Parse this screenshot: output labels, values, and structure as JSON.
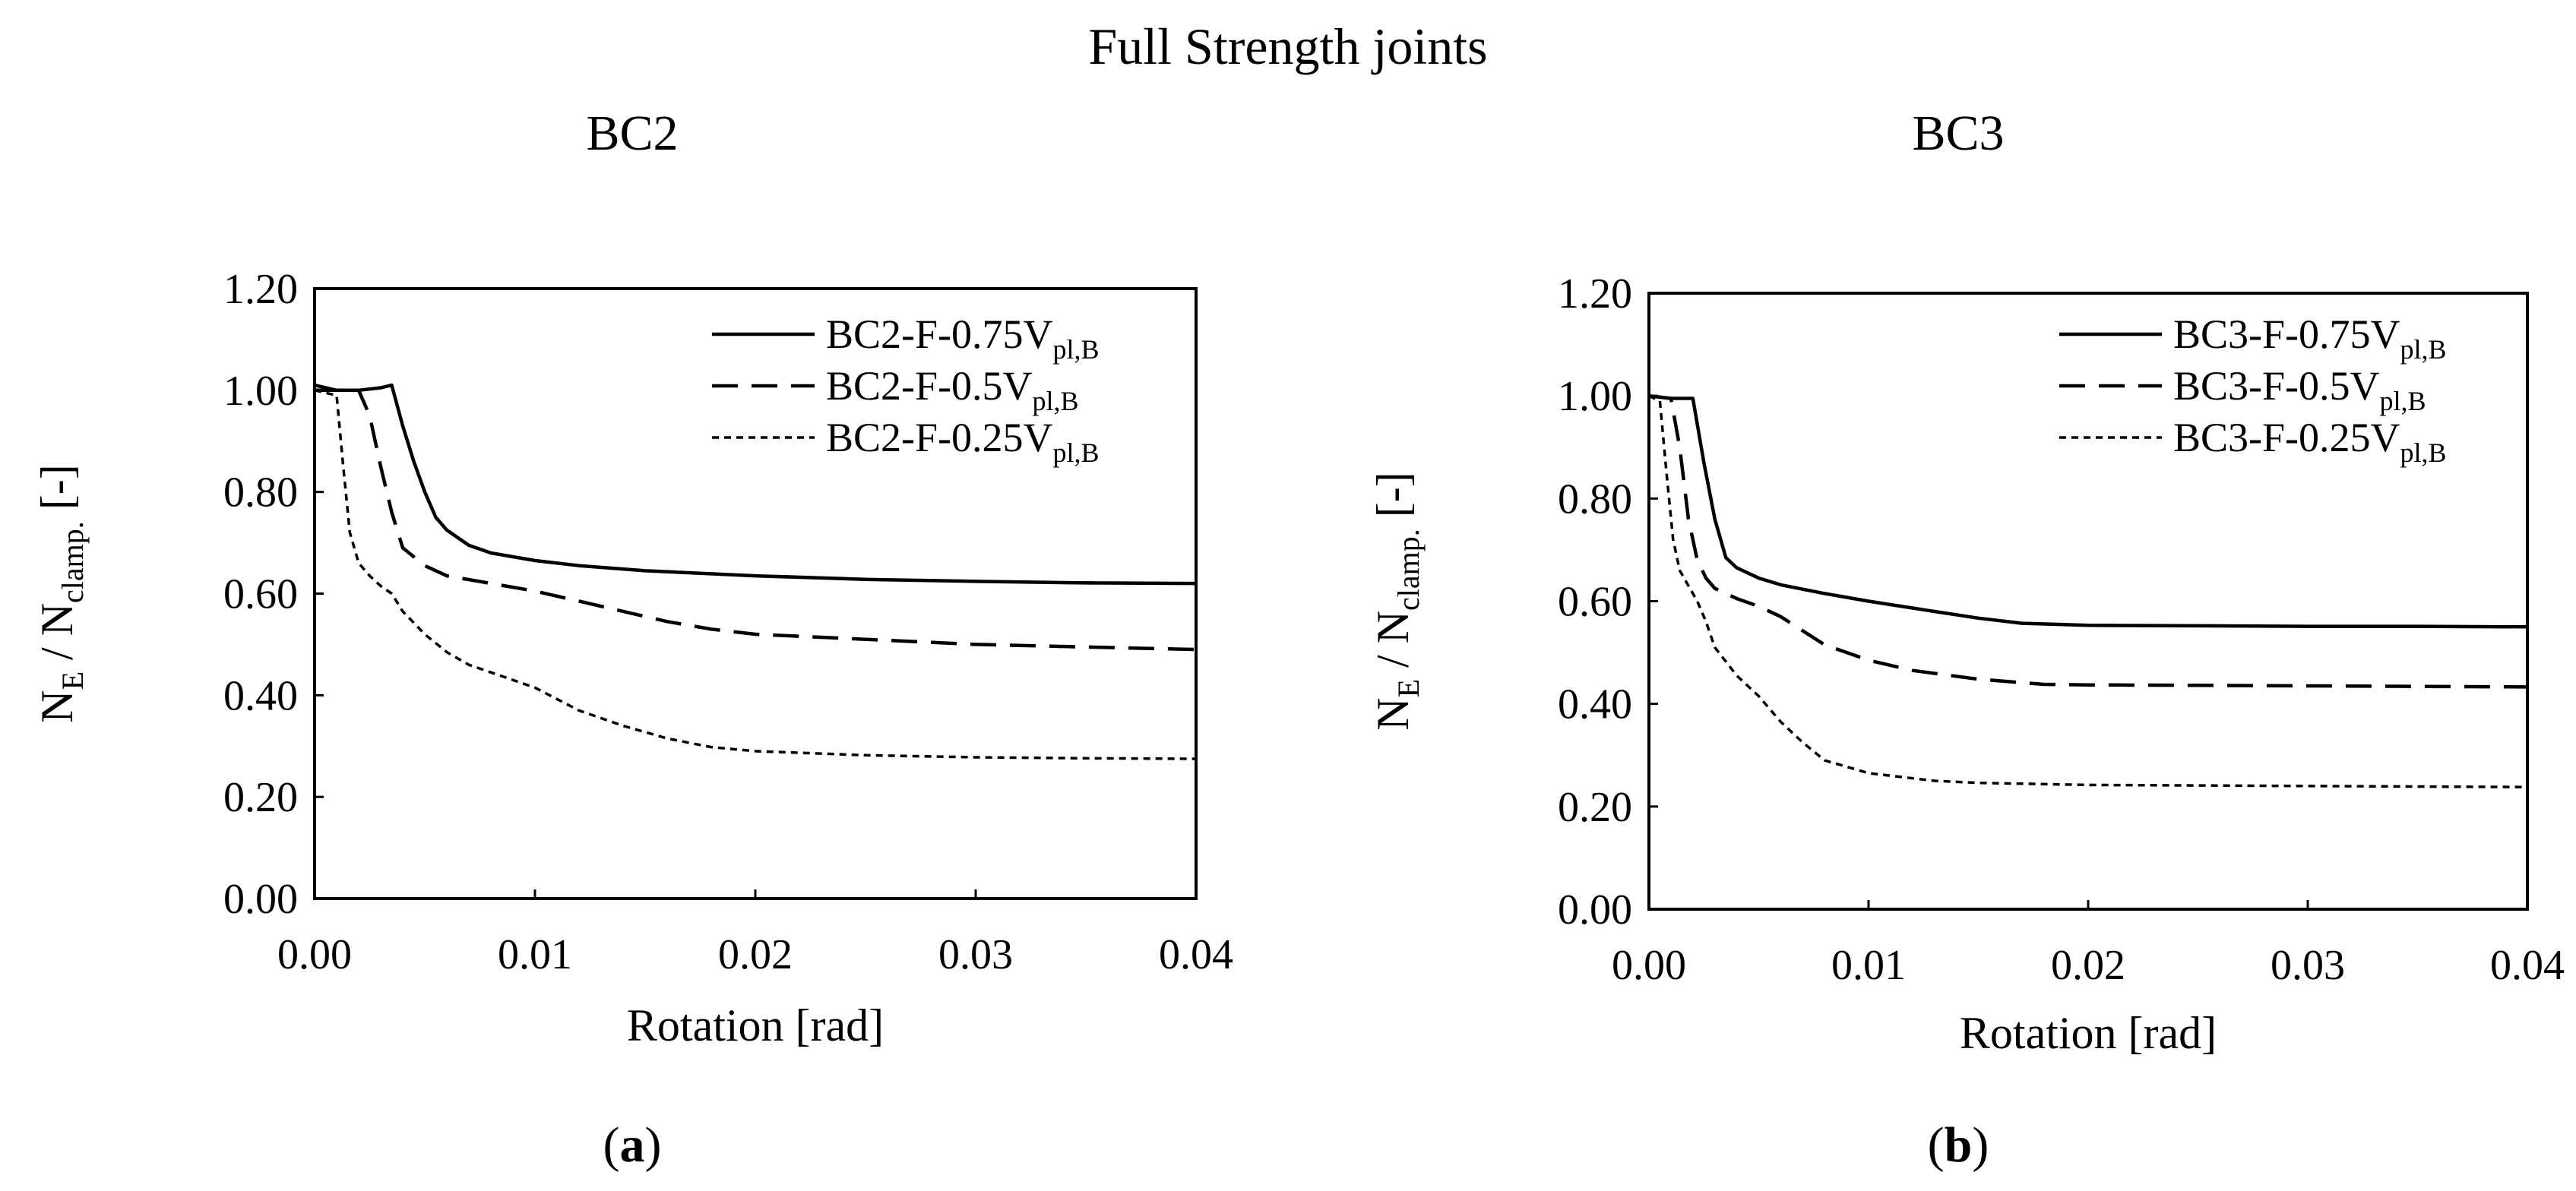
{
  "figure": {
    "title": "Full Strength joints",
    "panel_labels": [
      "a",
      "b"
    ]
  },
  "chart_data": [
    {
      "type": "line",
      "title": "BC2",
      "xlabel": "Rotation [rad]",
      "ylabel": {
        "base": "N",
        "sub1": "E",
        "mid": " / N",
        "sub2": "clamp.",
        "end": "  [-]"
      },
      "xlim": [
        0,
        0.04
      ],
      "ylim": [
        0,
        1.2
      ],
      "xticks": [
        0,
        0.01,
        0.02,
        0.03,
        0.04
      ],
      "xtick_labels": [
        "0.00",
        "0.01",
        "0.02",
        "0.03",
        "0.04"
      ],
      "yticks": [
        0,
        0.2,
        0.4,
        0.6,
        0.8,
        1.0,
        1.2
      ],
      "ytick_labels": [
        "0.00",
        "0.20",
        "0.40",
        "0.60",
        "0.80",
        "1.00",
        "1.20"
      ],
      "legend_position": "top-right",
      "series": [
        {
          "name": "BC2-F-0.75V",
          "sub": "pl,B",
          "style": "solid",
          "x": [
            0,
            0.001,
            0.002,
            0.003,
            0.0035,
            0.004,
            0.0045,
            0.005,
            0.0055,
            0.006,
            0.007,
            0.008,
            0.01,
            0.012,
            0.015,
            0.02,
            0.025,
            0.03,
            0.035,
            0.04
          ],
          "y": [
            1.01,
            1.0,
            1.0,
            1.005,
            1.01,
            0.93,
            0.86,
            0.8,
            0.75,
            0.725,
            0.695,
            0.68,
            0.665,
            0.655,
            0.645,
            0.635,
            0.628,
            0.624,
            0.621,
            0.62
          ]
        },
        {
          "name": "BC2-F-0.5V",
          "sub": "pl,B",
          "style": "dashed",
          "x": [
            0,
            0.001,
            0.002,
            0.0025,
            0.003,
            0.0035,
            0.004,
            0.005,
            0.006,
            0.008,
            0.01,
            0.012,
            0.014,
            0.016,
            0.018,
            0.02,
            0.025,
            0.03,
            0.035,
            0.04
          ],
          "y": [
            1.0,
            1.0,
            1.0,
            0.95,
            0.85,
            0.76,
            0.69,
            0.655,
            0.635,
            0.62,
            0.605,
            0.585,
            0.565,
            0.545,
            0.53,
            0.52,
            0.51,
            0.5,
            0.495,
            0.49
          ]
        },
        {
          "name": "BC2-F-0.25V",
          "sub": "pl,B",
          "style": "dotted",
          "x": [
            0,
            0.001,
            0.0013,
            0.0016,
            0.002,
            0.0025,
            0.003,
            0.0035,
            0.004,
            0.005,
            0.006,
            0.007,
            0.008,
            0.01,
            0.012,
            0.014,
            0.016,
            0.018,
            0.02,
            0.025,
            0.03,
            0.035,
            0.04
          ],
          "y": [
            1.0,
            0.99,
            0.85,
            0.72,
            0.66,
            0.635,
            0.615,
            0.6,
            0.565,
            0.52,
            0.485,
            0.46,
            0.445,
            0.415,
            0.37,
            0.34,
            0.315,
            0.298,
            0.29,
            0.282,
            0.278,
            0.276,
            0.275
          ]
        }
      ]
    },
    {
      "type": "line",
      "title": "BC3",
      "xlabel": "Rotation [rad]",
      "ylabel": {
        "base": "N",
        "sub1": "E",
        "mid": " / N",
        "sub2": "clamp.",
        "end": "  [-]"
      },
      "xlim": [
        0,
        0.04
      ],
      "ylim": [
        0,
        1.2
      ],
      "xticks": [
        0,
        0.01,
        0.02,
        0.03,
        0.04
      ],
      "xtick_labels": [
        "0.00",
        "0.01",
        "0.02",
        "0.03",
        "0.04"
      ],
      "yticks": [
        0,
        0.2,
        0.4,
        0.6,
        0.8,
        1.0,
        1.2
      ],
      "ytick_labels": [
        "0.00",
        "0.20",
        "0.40",
        "0.60",
        "0.80",
        "1.00",
        "1.20"
      ],
      "legend_position": "top-right",
      "series": [
        {
          "name": "BC3-F-0.75V",
          "sub": "pl,B",
          "style": "solid",
          "x": [
            0,
            0.001,
            0.002,
            0.0025,
            0.003,
            0.0035,
            0.004,
            0.005,
            0.006,
            0.008,
            0.01,
            0.013,
            0.015,
            0.017,
            0.02,
            0.025,
            0.03,
            0.035,
            0.04
          ],
          "y": [
            1.0,
            0.995,
            0.995,
            0.87,
            0.76,
            0.685,
            0.665,
            0.645,
            0.632,
            0.615,
            0.6,
            0.58,
            0.567,
            0.557,
            0.553,
            0.552,
            0.551,
            0.551,
            0.55
          ]
        },
        {
          "name": "BC3-F-0.5V",
          "sub": "pl,B",
          "style": "dashed",
          "x": [
            0,
            0.001,
            0.0014,
            0.0018,
            0.0022,
            0.0026,
            0.003,
            0.004,
            0.005,
            0.006,
            0.008,
            0.01,
            0.012,
            0.015,
            0.018,
            0.02,
            0.025,
            0.03,
            0.035,
            0.04
          ],
          "y": [
            1.0,
            0.995,
            0.9,
            0.76,
            0.68,
            0.645,
            0.625,
            0.605,
            0.59,
            0.57,
            0.515,
            0.485,
            0.465,
            0.448,
            0.438,
            0.437,
            0.436,
            0.435,
            0.434,
            0.433
          ]
        },
        {
          "name": "BC3-F-0.25V",
          "sub": "pl,B",
          "style": "dotted",
          "x": [
            0,
            0.0005,
            0.0008,
            0.0011,
            0.0014,
            0.0018,
            0.0022,
            0.0026,
            0.003,
            0.004,
            0.005,
            0.006,
            0.007,
            0.008,
            0.01,
            0.013,
            0.015,
            0.02,
            0.025,
            0.03,
            0.035,
            0.04
          ],
          "y": [
            1.0,
            0.99,
            0.85,
            0.72,
            0.66,
            0.63,
            0.6,
            0.56,
            0.51,
            0.455,
            0.415,
            0.365,
            0.325,
            0.29,
            0.265,
            0.25,
            0.246,
            0.242,
            0.241,
            0.24,
            0.239,
            0.238
          ]
        }
      ]
    }
  ]
}
